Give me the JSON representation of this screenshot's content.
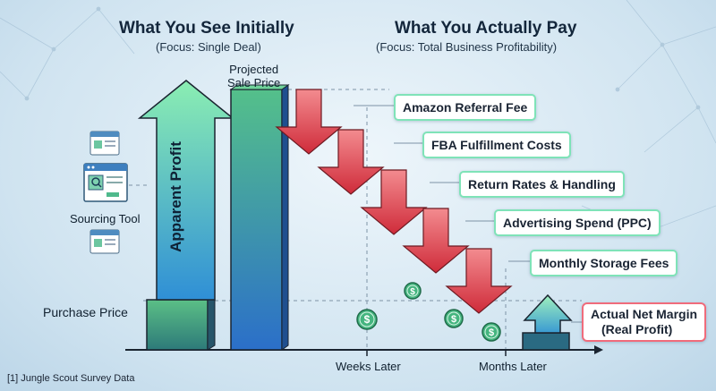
{
  "left_header": {
    "title": "What You See Initially",
    "subtitle": "(Focus: Single Deal)"
  },
  "right_header": {
    "title": "What You Actually Pay",
    "subtitle": "(Focus: Total Business Profitability)"
  },
  "apparent_profit_label": "Apparent Profit",
  "projected_sale_price_label": {
    "line1": "Projected",
    "line2": "Sale Price"
  },
  "sourcing_tool_label": "Sourcing Tool",
  "purchase_price_label": "Purchase Price",
  "fees": [
    "Amazon Referral Fee",
    "FBA Fulfillment Costs",
    "Return Rates & Handling",
    "Advertising Spend (PPC)",
    "Monthly Storage Fees"
  ],
  "net_margin": {
    "line1": "Actual Net Margin",
    "line2": "(Real Profit)"
  },
  "timeline": {
    "weeks": "Weeks Later",
    "months": "Months Later"
  },
  "footnote": "[1] Jungle Scout Survey Data",
  "colors": {
    "green_arrow_top": "#7fe7ad",
    "blue_bar": "#2e78c9",
    "green_bar": "#4fb98c",
    "fee_arrow": "#d93a46",
    "fee_border": "#7fe3b8",
    "net_border": "#f06b7b",
    "coin": "#3fb37c"
  },
  "icons": [
    "sourcing-window-icon",
    "dollar-coin-icon",
    "up-arrow-icon",
    "down-arrow-icon"
  ]
}
